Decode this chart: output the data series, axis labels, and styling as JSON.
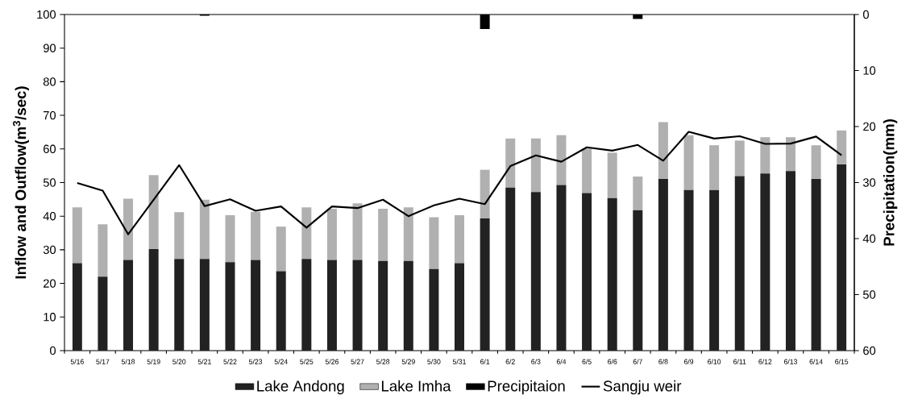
{
  "chart_data": {
    "type": "bar",
    "stacked": true,
    "legend": "bottom",
    "ylabel": "Inflow and Outflow(m$^{3}$/sec)",
    "y2label": "Precipitation(mm)",
    "categories": [
      "5/16",
      "5/17",
      "5/18",
      "5/19",
      "5/20",
      "5/21",
      "5/22",
      "5/23",
      "5/24",
      "5/25",
      "5/26",
      "5/27",
      "5/28",
      "5/29",
      "5/30",
      "5/31",
      "6/1",
      "6/2",
      "6/3",
      "6/4",
      "6/5",
      "6/6",
      "6/7",
      "6/8",
      "6/9",
      "6/10",
      "6/11",
      "6/12",
      "6/13",
      "6/14",
      "6/15"
    ],
    "ylim": [
      0,
      100
    ],
    "yticks": [
      0,
      10,
      20,
      30,
      40,
      50,
      60,
      70,
      80,
      90,
      100
    ],
    "y2lim": [
      60,
      0
    ],
    "y2ticks": [
      0,
      10,
      20,
      30,
      40,
      50,
      60
    ],
    "series": [
      {
        "name": "Lake Andong",
        "color": "#222222",
        "values": [
          26.0,
          22.0,
          27.0,
          30.2,
          27.3,
          27.3,
          26.3,
          27.0,
          23.6,
          27.3,
          27.0,
          27.0,
          26.7,
          26.7,
          24.3,
          26.0,
          39.3,
          48.5,
          47.2,
          49.3,
          46.9,
          45.4,
          41.8,
          51.1,
          47.8,
          47.8,
          51.9,
          52.7,
          53.4,
          51.1,
          55.4
        ]
      },
      {
        "name": "Lake Imha",
        "color": "#b0b0b0",
        "values": [
          16.6,
          15.6,
          18.2,
          22.0,
          13.9,
          17.6,
          14.0,
          14.3,
          13.3,
          15.3,
          15.2,
          16.8,
          15.5,
          15.9,
          15.4,
          14.3,
          14.5,
          14.6,
          15.9,
          14.8,
          13.2,
          13.5,
          10.0,
          16.9,
          16.3,
          13.3,
          10.6,
          10.8,
          10.1,
          10.0,
          10.1
        ]
      },
      {
        "name": "Precipitaion",
        "axis": "y2",
        "color": "#000000",
        "values": [
          0,
          0,
          0,
          0,
          0,
          0.2,
          0,
          0,
          0,
          0,
          0,
          0,
          0,
          0,
          0,
          0,
          2.6,
          0,
          0,
          0,
          0,
          0,
          0.8,
          0,
          0,
          0,
          0,
          0,
          0,
          0,
          0
        ]
      },
      {
        "name": "Sangju weir",
        "type": "line",
        "line_style": "solid",
        "color": "#000000",
        "values": [
          49.9,
          47.6,
          34.6,
          44.9,
          55.2,
          43.0,
          45.0,
          41.6,
          42.9,
          36.6,
          42.9,
          42.4,
          44.9,
          40.0,
          43.2,
          45.2,
          43.6,
          54.9,
          58.1,
          56.2,
          60.5,
          59.5,
          61.2,
          56.5,
          65.1,
          63.1,
          63.8,
          61.5,
          61.6,
          63.7,
          58.1
        ]
      }
    ]
  }
}
